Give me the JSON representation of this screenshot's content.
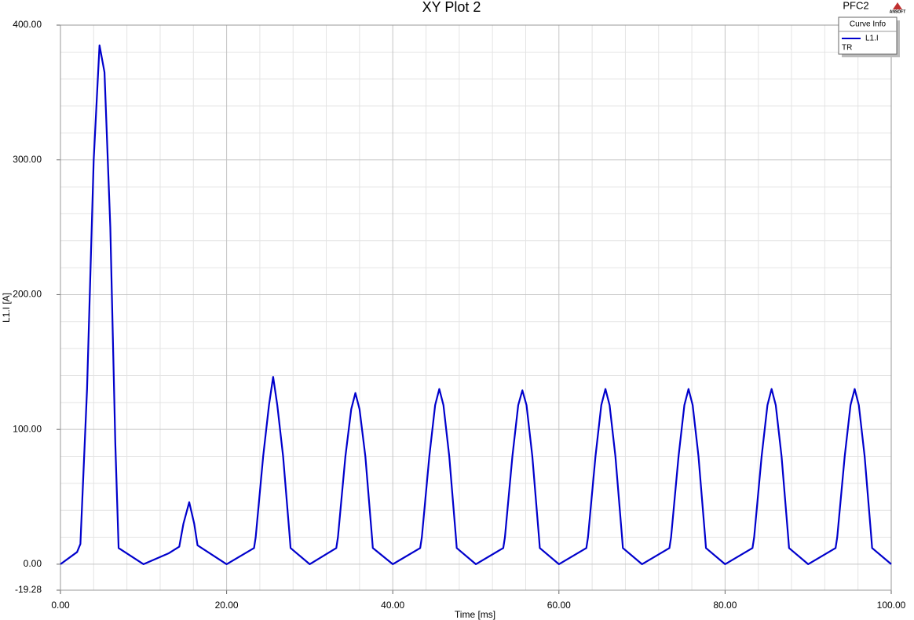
{
  "chart_data": {
    "type": "line",
    "title": "XY Plot 2",
    "xlabel": "Time [ms]",
    "ylabel": "L1.I [A]",
    "project": "PFC2",
    "logo": "ANSOFT",
    "legend_title": "Curve Info",
    "legend_note": "TR",
    "legend": "upper right",
    "grid": true,
    "x": [
      0,
      2,
      2.4,
      3.2,
      4,
      4.7,
      5.3,
      6,
      6.6,
      7,
      10,
      13,
      14.3,
      14.8,
      15.5,
      16.1,
      16.5,
      20,
      23.3,
      23.5,
      24.4,
      25.1,
      25.6,
      26.1,
      26.8,
      27.6,
      27.7,
      30,
      33.2,
      33.4,
      34.3,
      35,
      35.5,
      36,
      36.7,
      37.5,
      37.6,
      40,
      43.3,
      43.5,
      44.4,
      45.1,
      45.6,
      46.1,
      46.8,
      47.6,
      47.7,
      50,
      53.3,
      53.5,
      54.4,
      55.1,
      55.6,
      56.1,
      56.8,
      57.6,
      57.7,
      60,
      63.3,
      63.5,
      64.4,
      65.1,
      65.6,
      66.1,
      66.8,
      67.6,
      67.7,
      70,
      73.3,
      73.5,
      74.4,
      75.1,
      75.6,
      76.1,
      76.8,
      77.6,
      77.7,
      80,
      83.3,
      83.5,
      84.4,
      85.1,
      85.6,
      86.1,
      86.8,
      87.6,
      87.7,
      90,
      93.3,
      93.5,
      94.4,
      95.1,
      95.6,
      96.1,
      96.8,
      97.6,
      97.7,
      100
    ],
    "series": [
      {
        "name": "L1.I",
        "color": "#0000cc",
        "values": [
          0,
          9,
          15,
          130,
          300,
          385,
          365,
          250,
          90,
          12,
          0,
          8,
          13,
          30,
          46,
          30,
          14,
          0,
          12,
          20,
          80,
          118,
          139,
          118,
          80,
          20,
          12,
          0,
          12,
          20,
          80,
          115,
          127,
          115,
          80,
          20,
          12,
          0,
          12,
          20,
          80,
          118,
          130,
          118,
          80,
          20,
          12,
          0,
          12,
          20,
          80,
          118,
          129,
          118,
          80,
          20,
          12,
          0,
          12,
          20,
          80,
          118,
          130,
          118,
          80,
          20,
          12,
          0,
          12,
          20,
          80,
          118,
          130,
          118,
          80,
          20,
          12,
          0,
          12,
          20,
          80,
          118,
          130,
          118,
          80,
          20,
          12,
          0,
          12,
          20,
          80,
          118,
          130,
          118,
          80,
          20,
          12,
          0
        ]
      }
    ],
    "xlim": [
      0,
      100
    ],
    "ylim": [
      -19.28,
      400
    ],
    "xticks": [
      {
        "value": 0,
        "label": "0.00"
      },
      {
        "value": 20,
        "label": "20.00"
      },
      {
        "value": 40,
        "label": "40.00"
      },
      {
        "value": 60,
        "label": "60.00"
      },
      {
        "value": 80,
        "label": "80.00"
      },
      {
        "value": 100,
        "label": "100.00"
      }
    ],
    "yticks": [
      -19.28,
      {
        "value": 0,
        "label": "0.00"
      },
      {
        "value": 100,
        "label": "100.00"
      },
      {
        "value": 200,
        "label": "200.00"
      },
      {
        "value": 300,
        "label": "300.00"
      },
      {
        "value": 400,
        "label": "400.00"
      }
    ]
  }
}
